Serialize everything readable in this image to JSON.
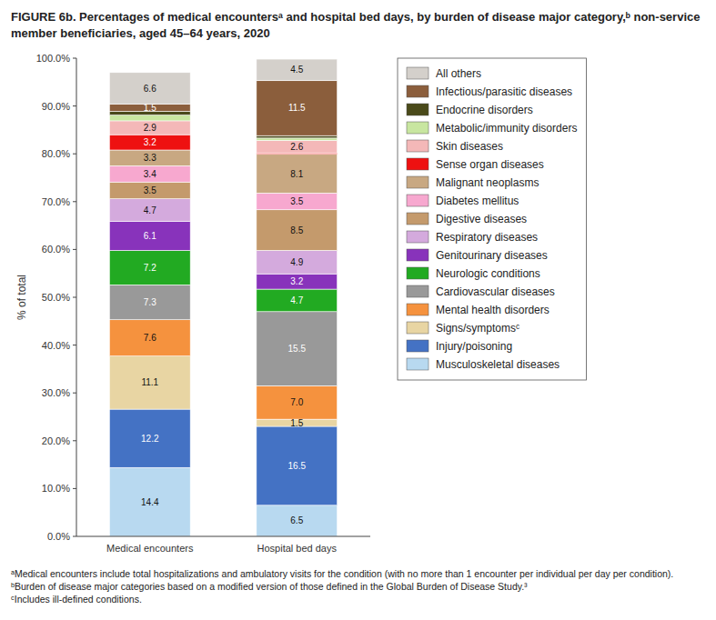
{
  "chart_data": {
    "type": "bar",
    "stacked": true,
    "title": "FIGURE 6b. Percentages of medical encountersᵃ and hospital bed days, by burden of disease major category,ᵇ non-service member beneficiaries, aged 45–64 years, 2020",
    "ylabel": "% of total",
    "categories": [
      "Medical encounters",
      "Hospital bed days"
    ],
    "ylim": [
      0,
      100
    ],
    "yticks": [
      {
        "value": 0,
        "label": "0.0%"
      },
      {
        "value": 10,
        "label": "10.0%"
      },
      {
        "value": 20,
        "label": "20.0%"
      },
      {
        "value": 30,
        "label": "30.0%"
      },
      {
        "value": 40,
        "label": "40.0%"
      },
      {
        "value": 50,
        "label": "50.0%"
      },
      {
        "value": 60,
        "label": "60.0%"
      },
      {
        "value": 70,
        "label": "70.0%"
      },
      {
        "value": 80,
        "label": "80.0%"
      },
      {
        "value": 90,
        "label": "90.0%"
      },
      {
        "value": 100,
        "label": "100.0%"
      }
    ],
    "grid": false,
    "legend": "right",
    "data_labels": true,
    "series": [
      {
        "name": "All others",
        "color": "#d4d0cb",
        "values": [
          6.6,
          4.5
        ],
        "value_labels": [
          "6.6",
          "4.5"
        ]
      },
      {
        "name": "Infectious/parasitic diseases",
        "color": "#8B5E3C",
        "values": [
          1.5,
          11.5
        ],
        "value_labels": [
          "1.5",
          "11.5"
        ]
      },
      {
        "name": "Endocrine disorders",
        "color": "#4a4a1a",
        "values": [
          0.8,
          0.5
        ],
        "value_labels": [
          null,
          null
        ]
      },
      {
        "name": "Metabolic/immunity disorders",
        "color": "#c8e6a0",
        "values": [
          1.2,
          0.5
        ],
        "value_labels": [
          null,
          null
        ]
      },
      {
        "name": "Skin diseases",
        "color": "#f4b8b8",
        "values": [
          2.9,
          2.6
        ],
        "value_labels": [
          "2.9",
          "2.6"
        ]
      },
      {
        "name": "Sense organ diseases",
        "color": "#ee1111",
        "values": [
          3.2,
          0.3
        ],
        "value_labels": [
          "3.2",
          null
        ]
      },
      {
        "name": "Malignant neoplasms",
        "color": "#c8a882",
        "values": [
          3.3,
          8.1
        ],
        "value_labels": [
          "3.3",
          "8.1"
        ]
      },
      {
        "name": "Diabetes mellitus",
        "color": "#f7a8cf",
        "values": [
          3.4,
          3.5
        ],
        "value_labels": [
          "3.4",
          "3.5"
        ]
      },
      {
        "name": "Digestive diseases",
        "color": "#c49a6c",
        "values": [
          3.5,
          8.5
        ],
        "value_labels": [
          "3.5",
          "8.5"
        ]
      },
      {
        "name": "Respiratory diseases",
        "color": "#d4aadd",
        "values": [
          4.7,
          4.9
        ],
        "value_labels": [
          "4.7",
          "4.9"
        ]
      },
      {
        "name": "Genitourinary diseases",
        "color": "#8833bb",
        "values": [
          6.1,
          3.2
        ],
        "value_labels": [
          "6.1",
          "3.2"
        ]
      },
      {
        "name": "Neurologic conditions",
        "color": "#22aa22",
        "values": [
          7.2,
          4.7
        ],
        "value_labels": [
          "7.2",
          "4.7"
        ]
      },
      {
        "name": "Cardiovascular diseases",
        "color": "#999999",
        "values": [
          7.3,
          15.5
        ],
        "value_labels": [
          "7.3",
          "15.5"
        ]
      },
      {
        "name": "Mental health disorders",
        "color": "#f5923e",
        "values": [
          7.6,
          7.0
        ],
        "value_labels": [
          "7.6",
          "7.0"
        ]
      },
      {
        "name": "Signs/symptomsᶜ",
        "color": "#e8d5a3",
        "values": [
          11.1,
          1.5
        ],
        "value_labels": [
          "11.1",
          "1.5"
        ]
      },
      {
        "name": "Injury/poisoning",
        "color": "#4472c4",
        "values": [
          12.2,
          16.5
        ],
        "value_labels": [
          "12.2",
          "16.5"
        ]
      },
      {
        "name": "Musculoskeletal diseases",
        "color": "#b8d9f0",
        "values": [
          14.4,
          6.5
        ],
        "value_labels": [
          "14.4",
          "6.5"
        ]
      }
    ],
    "annotations": [
      "ᵃMedical encounters include total hospitalizations and ambulatory visits for the condition (with no more than 1 encounter per individual per day per condition).",
      "ᵇBurden of disease major categories based on a modified version of those defined in the Global Burden of Disease Study.³",
      "ᶜIncludes ill-defined conditions."
    ]
  }
}
